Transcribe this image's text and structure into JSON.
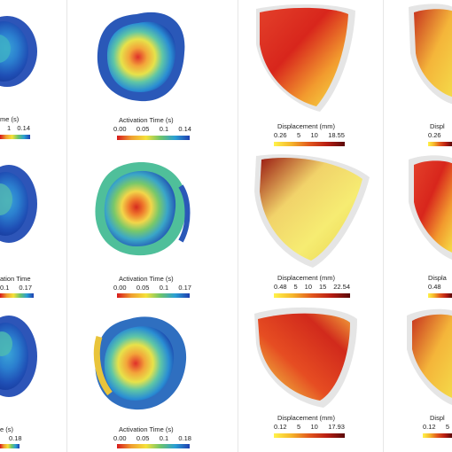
{
  "colors": {
    "activation_scale": [
      "#d7191c",
      "#f0a030",
      "#f5e13a",
      "#6cc46b",
      "#2a9fd4",
      "#1f3fb0"
    ],
    "displacement_scale": [
      "#fff34a",
      "#f5b52b",
      "#e2571d",
      "#b81d13",
      "#5a0a0a"
    ]
  },
  "activation": {
    "row1": {
      "left_title": "me (s)",
      "left_ticks": [
        "1",
        "0.14"
      ],
      "right_title": "Activation Time (s)",
      "right_ticks": [
        "0.00",
        "0.05",
        "0.1",
        "0.14"
      ]
    },
    "row2": {
      "left_title": "ation Time",
      "left_ticks": [
        "0.1",
        "0.17"
      ],
      "right_title": "Activation Time (s)",
      "right_ticks": [
        "0.00",
        "0.05",
        "0.1",
        "0.17"
      ]
    },
    "row3": {
      "left_title": "e (s)",
      "left_ticks": [
        "0.18"
      ],
      "right_title": "Activation Time (s)",
      "right_ticks": [
        "0.00",
        "0.05",
        "0.1",
        "0.18"
      ]
    }
  },
  "displacement": {
    "row1": {
      "title": "Displacement (mm)",
      "ticks": [
        "0.26",
        "5",
        "10",
        "18.55"
      ],
      "right_title": "Displ",
      "right_ticks": [
        "0.26"
      ]
    },
    "row2": {
      "title": "Displacement (mm)",
      "ticks": [
        "0.48",
        "5",
        "10",
        "15",
        "22.54"
      ],
      "right_title": "Displa",
      "right_ticks": [
        "0.48"
      ]
    },
    "row3": {
      "title": "Displacement (mm)",
      "ticks": [
        "0.12",
        "5",
        "10",
        "17.93"
      ],
      "right_title": "Displ",
      "right_ticks": [
        "0.12",
        "5"
      ]
    }
  }
}
